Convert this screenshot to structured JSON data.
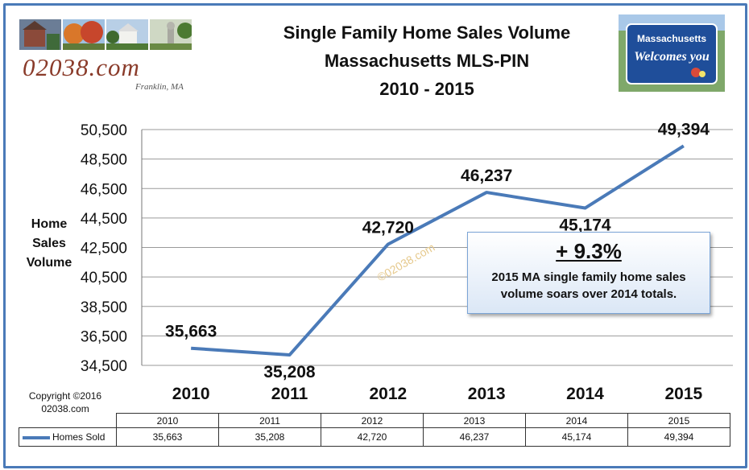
{
  "header": {
    "title_lines": [
      "Single Family Home Sales Volume",
      "Massachusetts  MLS-PIN",
      "2010 - 2015"
    ],
    "logo_text": "02038.com",
    "logo_subtext": "Franklin, MA",
    "sign_lines": [
      "Massachusetts",
      "Welcomes you"
    ]
  },
  "colors": {
    "line": "#4a7ab8",
    "frame": "#4a7ab8",
    "callout_bg": "#dbe7f6"
  },
  "chart_data": {
    "type": "line",
    "title": "Single Family Home Sales Volume Massachusetts  MLS-PIN 2010 - 2015",
    "categories": [
      "2010",
      "2011",
      "2012",
      "2013",
      "2014",
      "2015"
    ],
    "series": [
      {
        "name": "Homes Sold",
        "values": [
          35663,
          35208,
          42720,
          46237,
          45174,
          49394
        ]
      }
    ],
    "data_labels": [
      "35,663",
      "35,208",
      "42,720",
      "46,237",
      "45,174",
      "49,394"
    ],
    "ylabel": "Home Sales Volume",
    "ylabel_lines": [
      "Home",
      "Sales",
      "Volume"
    ],
    "ylim": [
      34500,
      50500
    ],
    "y_ticks": [
      34500,
      36500,
      38500,
      40500,
      42500,
      44500,
      46500,
      48500,
      50500
    ],
    "y_tick_labels": [
      "34,500",
      "36,500",
      "38,500",
      "40,500",
      "42,500",
      "44,500",
      "46,500",
      "48,500",
      "50,500"
    ],
    "grid": true,
    "watermark": "©02038.com"
  },
  "callout": {
    "percent": "+ 9.3%",
    "message": "2015 MA single family home sales volume soars over 2014 totals."
  },
  "copyright": {
    "line1": "Copyright ©2016",
    "line2": "02038.com"
  },
  "data_table": {
    "series_label": "Homes Sold",
    "years": [
      "2010",
      "2011",
      "2012",
      "2013",
      "2014",
      "2015"
    ],
    "values": [
      "35,663",
      "35,208",
      "42,720",
      "46,237",
      "45,174",
      "49,394"
    ]
  }
}
